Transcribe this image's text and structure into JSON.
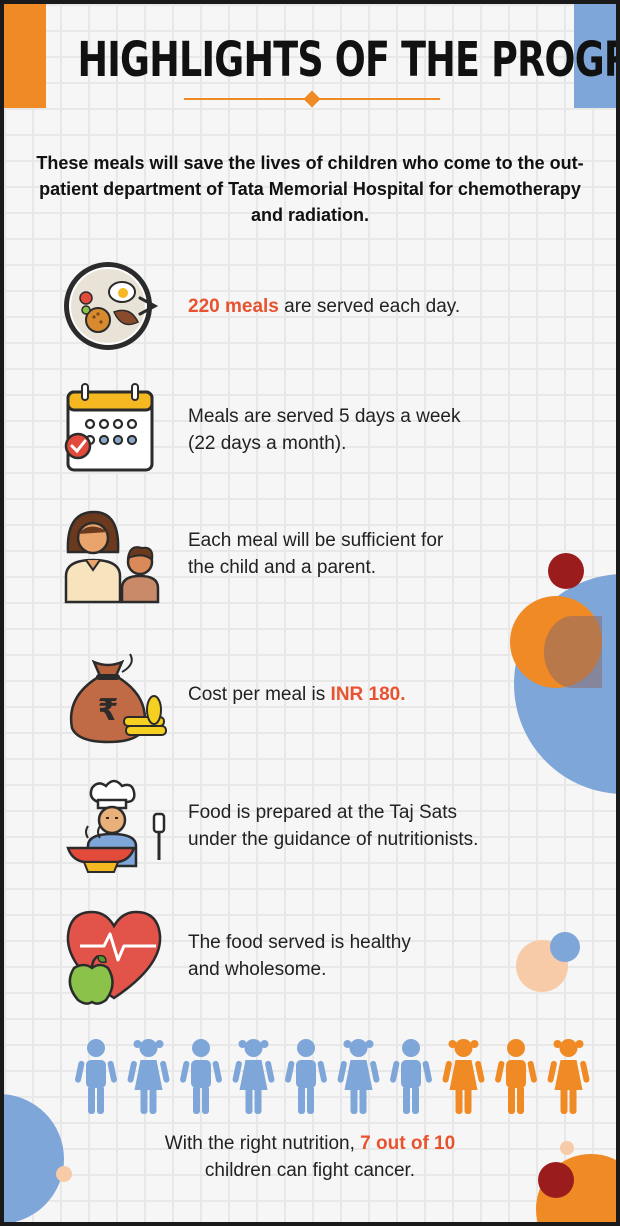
{
  "header": {
    "title": "HIGHLIGHTS OF THE PROGRAM"
  },
  "intro": "These meals will save the lives of children who come  to the out-patient department of Tata Memorial Hospital for chemotherapy and radiation.",
  "items": [
    {
      "icon": "meal-plate-icon",
      "highlight": "220 meals",
      "text": " are served each day."
    },
    {
      "icon": "calendar-icon",
      "line1": "Meals are served 5 days a week",
      "line2": "(22 days a month)."
    },
    {
      "icon": "parent-child-icon",
      "line1": "Each meal will be sufficient for",
      "line2": "the child and a parent."
    },
    {
      "icon": "money-bag-icon",
      "text": "Cost per meal is ",
      "highlight": "INR 180."
    },
    {
      "icon": "chef-icon",
      "line1": "Food is prepared at the Taj Sats",
      "line2": "under the guidance of nutritionists."
    },
    {
      "icon": "healthy-heart-apple-icon",
      "line1": "The food served is healthy",
      "line2": "and wholesome."
    }
  ],
  "stat": {
    "total": 10,
    "highlighted": 7,
    "highlighted_color": "#7ea6d8",
    "other_color": "#f08a24"
  },
  "footer": {
    "before": "With the right nutrition, ",
    "highlight": "7 out of 10",
    "after": "children can fight cancer."
  },
  "colors": {
    "accent": "#e8532f",
    "orange": "#f08a24",
    "blue": "#7ea6d8",
    "dark_red": "#9b1c1c"
  }
}
